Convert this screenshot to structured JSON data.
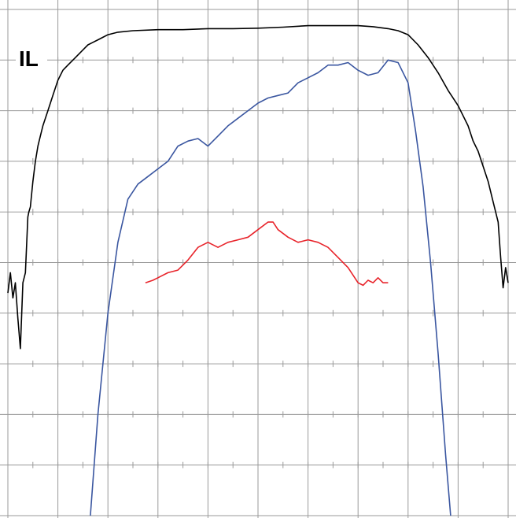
{
  "chart_data": {
    "type": "line",
    "title": "",
    "xlabel": "",
    "ylabel": "",
    "trace_label": "IL",
    "grid": true,
    "grid_divisions": {
      "x": 10,
      "y": 10
    },
    "xlim": [
      0,
      10
    ],
    "ylim": [
      0,
      10
    ],
    "colors": {
      "grid": "#9a9a9a",
      "frame": "#9a9a9a",
      "background": "#ffffff"
    },
    "series": [
      {
        "color": "#000000",
        "x": [
          0.0,
          0.05,
          0.1,
          0.15,
          0.2,
          0.25,
          0.3,
          0.35,
          0.4,
          0.42,
          0.45,
          0.5,
          0.55,
          0.6,
          0.65,
          0.7,
          0.8,
          0.9,
          1.0,
          1.1,
          1.2,
          1.3,
          1.4,
          1.5,
          1.6,
          1.7,
          1.8,
          1.9,
          2.0,
          2.2,
          2.5,
          3.0,
          3.5,
          4.0,
          4.5,
          5.0,
          5.5,
          6.0,
          6.5,
          7.0,
          7.3,
          7.6,
          7.8,
          8.0,
          8.2,
          8.4,
          8.6,
          8.8,
          9.0,
          9.2,
          9.3,
          9.4,
          9.5,
          9.6,
          9.7,
          9.8,
          9.85,
          9.9,
          9.95,
          10.0
        ],
        "values": [
          4.4,
          4.8,
          4.3,
          4.6,
          3.9,
          3.3,
          4.6,
          4.8,
          5.9,
          6.0,
          6.1,
          6.6,
          7.0,
          7.3,
          7.5,
          7.7,
          8.0,
          8.3,
          8.6,
          8.8,
          8.9,
          9.0,
          9.1,
          9.2,
          9.3,
          9.35,
          9.4,
          9.45,
          9.5,
          9.55,
          9.58,
          9.6,
          9.6,
          9.62,
          9.62,
          9.63,
          9.65,
          9.68,
          9.68,
          9.68,
          9.66,
          9.62,
          9.58,
          9.5,
          9.3,
          9.05,
          8.75,
          8.4,
          8.1,
          7.7,
          7.4,
          7.2,
          6.9,
          6.6,
          6.2,
          5.8,
          5.1,
          4.5,
          4.9,
          4.6
        ]
      },
      {
        "color": "#3a56a0",
        "x": [
          1.65,
          1.8,
          2.0,
          2.2,
          2.4,
          2.6,
          2.8,
          3.0,
          3.2,
          3.4,
          3.6,
          3.8,
          4.0,
          4.2,
          4.4,
          4.6,
          4.8,
          5.0,
          5.2,
          5.4,
          5.6,
          5.8,
          6.0,
          6.2,
          6.4,
          6.6,
          6.8,
          7.0,
          7.2,
          7.4,
          7.6,
          7.8,
          8.0,
          8.15,
          8.3,
          8.45,
          8.6,
          8.75,
          8.85
        ],
        "values": [
          0.0,
          2.0,
          4.0,
          5.4,
          6.25,
          6.55,
          6.7,
          6.85,
          7.0,
          7.3,
          7.4,
          7.45,
          7.3,
          7.5,
          7.7,
          7.85,
          8.0,
          8.15,
          8.25,
          8.3,
          8.35,
          8.55,
          8.65,
          8.75,
          8.9,
          8.9,
          8.95,
          8.8,
          8.7,
          8.75,
          9.0,
          8.95,
          8.55,
          7.6,
          6.5,
          5.0,
          3.2,
          1.2,
          0.0
        ]
      },
      {
        "color": "#e8232a",
        "x": [
          2.75,
          2.9,
          3.0,
          3.2,
          3.4,
          3.6,
          3.8,
          4.0,
          4.2,
          4.4,
          4.6,
          4.8,
          5.0,
          5.2,
          5.3,
          5.4,
          5.6,
          5.8,
          6.0,
          6.2,
          6.4,
          6.6,
          6.8,
          7.0,
          7.1,
          7.2,
          7.3,
          7.4,
          7.5,
          7.6
        ],
        "values": [
          4.6,
          4.65,
          4.7,
          4.8,
          4.85,
          5.05,
          5.3,
          5.4,
          5.3,
          5.4,
          5.45,
          5.5,
          5.65,
          5.8,
          5.8,
          5.65,
          5.5,
          5.4,
          5.45,
          5.4,
          5.3,
          5.1,
          4.9,
          4.6,
          4.55,
          4.65,
          4.6,
          4.7,
          4.6,
          4.6
        ]
      }
    ]
  }
}
